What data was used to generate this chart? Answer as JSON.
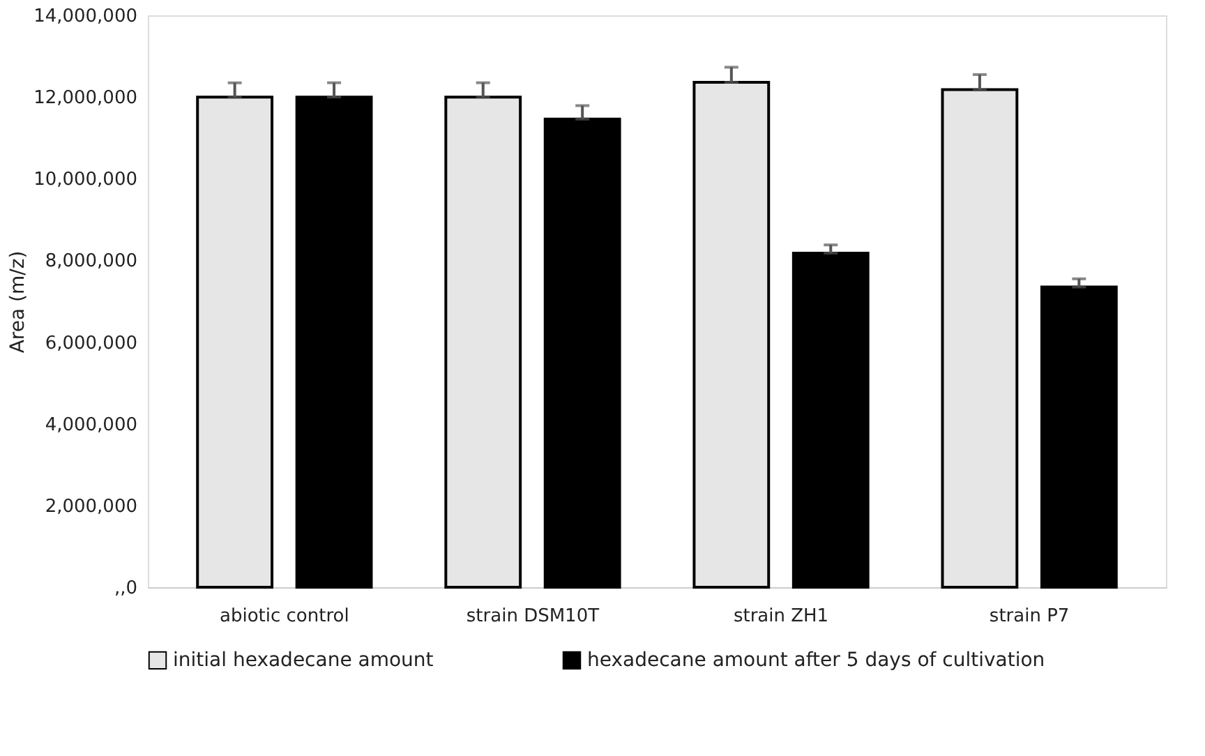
{
  "chart_data": {
    "type": "bar",
    "ylabel": "Area (m/z)",
    "categories": [
      "abiotic control",
      "strain DSM10T",
      "strain ZH1",
      "strain P7"
    ],
    "series": [
      {
        "name": "initial hexadecane amount",
        "color": "#e6e6e6",
        "values": [
          12000000,
          12000000,
          12360000,
          12180000
        ],
        "errors": [
          [
            12000000,
            12350000
          ],
          [
            12000000,
            12350000
          ],
          [
            12360000,
            12730000
          ],
          [
            12180000,
            12550000
          ]
        ]
      },
      {
        "name": "hexadecane amount after 5 days of cultivation",
        "color": "#000000",
        "values": [
          12000000,
          11460000,
          8180000,
          7350000
        ],
        "errors": [
          [
            12000000,
            12350000
          ],
          [
            11460000,
            11790000
          ],
          [
            8180000,
            8380000
          ],
          [
            7350000,
            7550000
          ]
        ]
      }
    ],
    "ylim": [
      0,
      14000000
    ],
    "yticks": [
      {
        "value": 0,
        "label": ",,0"
      },
      {
        "value": 2000000,
        "label": "2,000,000"
      },
      {
        "value": 4000000,
        "label": "4,000,000"
      },
      {
        "value": 6000000,
        "label": "6,000,000"
      },
      {
        "value": 8000000,
        "label": "8,000,000"
      },
      {
        "value": 10000000,
        "label": "10,000,000"
      },
      {
        "value": 12000000,
        "label": "12,000,000"
      },
      {
        "value": 14000000,
        "label": "14,000,000"
      }
    ],
    "grid": false,
    "legend": "bottom"
  }
}
